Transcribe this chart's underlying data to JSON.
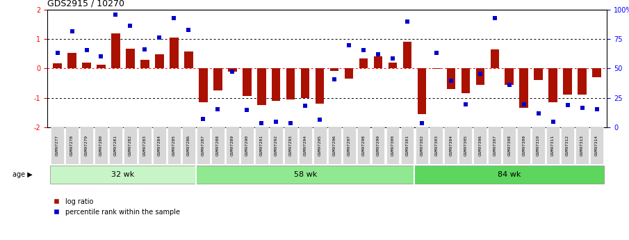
{
  "title": "GDS2915 / 10270",
  "samples": [
    "GSM97277",
    "GSM97278",
    "GSM97279",
    "GSM97280",
    "GSM97281",
    "GSM97282",
    "GSM97283",
    "GSM97284",
    "GSM97285",
    "GSM97286",
    "GSM97287",
    "GSM97288",
    "GSM97289",
    "GSM97290",
    "GSM97291",
    "GSM97292",
    "GSM97293",
    "GSM97294",
    "GSM97295",
    "GSM97296",
    "GSM97297",
    "GSM97298",
    "GSM97299",
    "GSM97300",
    "GSM97301",
    "GSM97302",
    "GSM97303",
    "GSM97304",
    "GSM97305",
    "GSM97306",
    "GSM97307",
    "GSM97308",
    "GSM97309",
    "GSM97310",
    "GSM97311",
    "GSM97312",
    "GSM97313",
    "GSM97314"
  ],
  "log_ratio": [
    0.18,
    0.52,
    0.2,
    0.13,
    1.18,
    0.68,
    0.3,
    0.47,
    1.05,
    0.58,
    -1.15,
    -0.75,
    -0.12,
    -0.95,
    -1.25,
    -1.1,
    -1.05,
    -1.0,
    -1.2,
    -0.08,
    -0.35,
    0.35,
    0.4,
    0.2,
    0.9,
    -1.55,
    -0.02,
    -0.7,
    -0.85,
    -0.55,
    0.65,
    -0.55,
    -1.35,
    -0.4,
    -1.15,
    -0.9,
    -0.9,
    -0.3
  ],
  "percentile_rank_scaled": [
    0.52,
    1.25,
    0.62,
    0.42,
    1.82,
    1.45,
    0.65,
    1.05,
    1.72,
    1.3,
    -1.72,
    -1.4,
    -0.12,
    -1.42,
    -1.85,
    -1.82,
    -1.85,
    -1.28,
    -1.75,
    -0.38,
    0.78,
    0.62,
    0.48,
    0.35,
    1.6,
    -1.85,
    0.52,
    -0.42,
    -1.22,
    -0.18,
    1.7,
    -0.55,
    -1.22,
    -1.52,
    -1.82,
    -1.25,
    -1.35,
    -1.38
  ],
  "groups": [
    {
      "label": "32 wk",
      "start": 0,
      "end": 10,
      "color": "#c8f5c8"
    },
    {
      "label": "58 wk",
      "start": 10,
      "end": 25,
      "color": "#90e890"
    },
    {
      "label": "84 wk",
      "start": 25,
      "end": 38,
      "color": "#5cd65c"
    }
  ],
  "bar_color": "#aa1100",
  "scatter_color": "#0000cc",
  "ylim": [
    -2.0,
    2.0
  ],
  "background_color": "#ffffff",
  "xtick_bg": "#d8d8d8"
}
